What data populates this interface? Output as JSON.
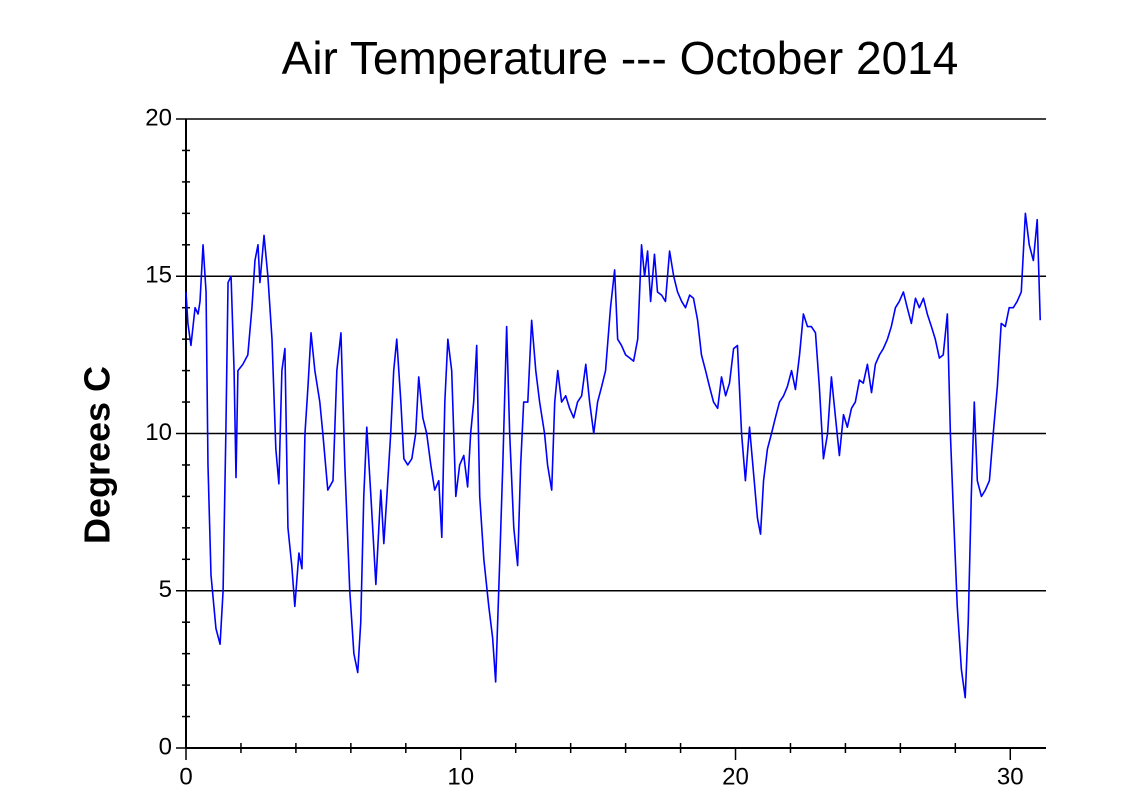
{
  "chart_data": {
    "type": "line",
    "title": "Air Temperature --- October 2014",
    "y_label": "Degrees C",
    "x": [
      0,
      0.07,
      0.18,
      0.33,
      0.44,
      0.51,
      0.62,
      0.73,
      0.8,
      0.91,
      1.09,
      1.24,
      1.35,
      1.45,
      1.53,
      1.64,
      1.75,
      1.82,
      1.89,
      2.07,
      2.25,
      2.4,
      2.51,
      2.62,
      2.69,
      2.84,
      2.98,
      3.13,
      3.27,
      3.38,
      3.49,
      3.6,
      3.71,
      3.85,
      3.96,
      4.11,
      4.22,
      4.33,
      4.44,
      4.55,
      4.69,
      4.87,
      4.98,
      5.16,
      5.35,
      5.49,
      5.64,
      5.78,
      5.96,
      6.11,
      6.25,
      6.36,
      6.47,
      6.58,
      6.73,
      6.91,
      7.09,
      7.2,
      7.31,
      7.45,
      7.56,
      7.67,
      7.82,
      7.93,
      8.07,
      8.22,
      8.36,
      8.47,
      8.62,
      8.76,
      8.91,
      9.05,
      9.2,
      9.31,
      9.42,
      9.53,
      9.67,
      9.82,
      9.96,
      10.11,
      10.25,
      10.36,
      10.47,
      10.58,
      10.69,
      10.84,
      11.02,
      11.16,
      11.27,
      11.42,
      11.53,
      11.67,
      11.78,
      11.93,
      12.07,
      12.18,
      12.29,
      12.44,
      12.58,
      12.73,
      12.87,
      13.05,
      13.16,
      13.31,
      13.42,
      13.53,
      13.67,
      13.82,
      13.96,
      14.11,
      14.25,
      14.4,
      14.55,
      14.69,
      14.84,
      14.98,
      15.13,
      15.27,
      15.45,
      15.6,
      15.71,
      15.85,
      16.0,
      16.15,
      16.29,
      16.44,
      16.58,
      16.69,
      16.8,
      16.91,
      17.05,
      17.16,
      17.31,
      17.45,
      17.6,
      17.75,
      17.89,
      18.04,
      18.18,
      18.33,
      18.47,
      18.62,
      18.76,
      18.91,
      19.05,
      19.2,
      19.35,
      19.49,
      19.64,
      19.78,
      19.93,
      20.07,
      20.22,
      20.36,
      20.51,
      20.65,
      20.8,
      20.91,
      21.02,
      21.16,
      21.31,
      21.45,
      21.6,
      21.75,
      21.89,
      22.04,
      22.18,
      22.33,
      22.47,
      22.62,
      22.76,
      22.91,
      23.05,
      23.2,
      23.35,
      23.49,
      23.64,
      23.78,
      23.93,
      24.07,
      24.22,
      24.36,
      24.51,
      24.65,
      24.8,
      24.95,
      25.09,
      25.24,
      25.38,
      25.53,
      25.67,
      25.82,
      25.96,
      26.11,
      26.25,
      26.4,
      26.55,
      26.69,
      26.84,
      26.98,
      27.13,
      27.27,
      27.42,
      27.56,
      27.71,
      27.82,
      27.93,
      28.07,
      28.22,
      28.36,
      28.47,
      28.58,
      28.69,
      28.8,
      28.95,
      29.09,
      29.24,
      29.38,
      29.53,
      29.67,
      29.82,
      29.96,
      30.11,
      30.25,
      30.4,
      30.55,
      30.69,
      30.84,
      30.98,
      31.09
    ],
    "series": [
      {
        "color": "#0000ff",
        "values": [
          14.5,
          13.5,
          12.8,
          14,
          13.8,
          14.2,
          16,
          14.5,
          9,
          5.5,
          3.8,
          3.3,
          5,
          10,
          14.8,
          15,
          12,
          8.6,
          12,
          12.2,
          12.5,
          14,
          15.5,
          16,
          14.8,
          16.3,
          15,
          13,
          9.5,
          8.4,
          12,
          12.7,
          7,
          5.8,
          4.5,
          6.2,
          5.7,
          10,
          11.5,
          13.2,
          12,
          11,
          10,
          8.2,
          8.5,
          12,
          13.2,
          9,
          5,
          3,
          2.4,
          4,
          8,
          10.2,
          8,
          5.2,
          8.2,
          6.5,
          8,
          10,
          12,
          13,
          11,
          9.2,
          9,
          9.2,
          10,
          11.8,
          10.5,
          10,
          9,
          8.2,
          8.5,
          6.7,
          11,
          13,
          12,
          8,
          9,
          9.3,
          8.3,
          10,
          11,
          12.8,
          8,
          6,
          4.5,
          3.5,
          2.1,
          6,
          9,
          13.4,
          10,
          7,
          5.8,
          9,
          11,
          11,
          13.6,
          12,
          11,
          10,
          9,
          8.2,
          11,
          12,
          11,
          11.2,
          10.8,
          10.5,
          11,
          11.2,
          12.2,
          11,
          10,
          11,
          11.5,
          12,
          14,
          15.2,
          13,
          12.8,
          12.5,
          12.4,
          12.3,
          13,
          16,
          15,
          15.8,
          14.2,
          15.7,
          14.5,
          14.4,
          14.2,
          15.8,
          15,
          14.5,
          14.2,
          14,
          14.4,
          14.3,
          13.6,
          12.5,
          12,
          11.5,
          11,
          10.8,
          11.8,
          11.2,
          11.6,
          12.7,
          12.8,
          10,
          8.5,
          10.2,
          8.8,
          7.3,
          6.8,
          8.5,
          9.5,
          10,
          10.5,
          11,
          11.2,
          11.5,
          12,
          11.4,
          12.5,
          13.8,
          13.4,
          13.4,
          13.2,
          11.5,
          9.2,
          10,
          11.8,
          10.5,
          9.3,
          10.6,
          10.2,
          10.8,
          11,
          11.7,
          11.6,
          12.2,
          11.3,
          12.2,
          12.5,
          12.7,
          13,
          13.4,
          14,
          14.2,
          14.5,
          14,
          13.5,
          14.3,
          14,
          14.3,
          13.8,
          13.4,
          13,
          12.4,
          12.5,
          13.8,
          10,
          7.5,
          4.5,
          2.5,
          1.6,
          4,
          8,
          11,
          8.5,
          8,
          8.2,
          8.5,
          10,
          11.5,
          13.5,
          13.4,
          14,
          14,
          14.2,
          14.5,
          17,
          16,
          15.5,
          16.8,
          13.6
        ]
      }
    ],
    "xlim": [
      0,
      31.3
    ],
    "xticks": [
      0,
      10,
      20,
      30
    ],
    "xminorticks": [
      2,
      4,
      6,
      8,
      12,
      14,
      16,
      18,
      22,
      24,
      26,
      28
    ],
    "ylim": [
      0,
      20
    ],
    "yticks": [
      0,
      5,
      10,
      15,
      20
    ],
    "yminorticks": [
      1,
      2,
      3,
      4,
      6,
      7,
      8,
      9,
      11,
      12,
      13,
      14,
      16,
      17,
      18,
      19
    ],
    "grid": true
  }
}
